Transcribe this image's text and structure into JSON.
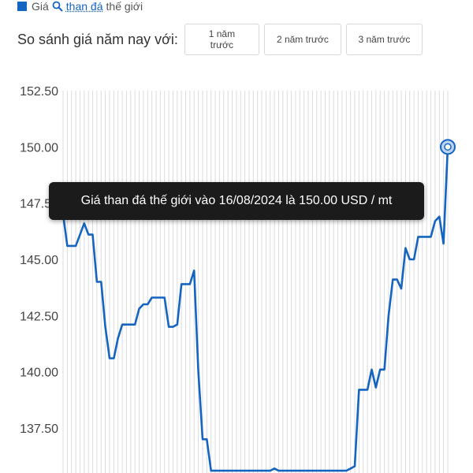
{
  "header": {
    "prefix": "Giá",
    "keyword": "than đá",
    "suffix": "thế giới",
    "icon": "search-icon",
    "accent": "#1565c0"
  },
  "compare": {
    "label": "So sánh giá năm nay với:",
    "buttons": [
      "1 năm trước",
      "2 năm trước",
      "3 năm trước"
    ]
  },
  "tooltip": {
    "text": "Giá than đá thế giới vào 16/08/2024 là 150.00 USD / mt"
  },
  "chart_data": {
    "type": "line",
    "title": "",
    "xlabel": "",
    "ylabel": "",
    "ylim": [
      135.5,
      152.5
    ],
    "yticks": [
      "152.50",
      "150.00",
      "147.50",
      "145.00",
      "142.50",
      "140.00",
      "137.50"
    ],
    "grid": "vertical",
    "line_color": "#1565c0",
    "highlight_point": {
      "date": "16/08/2024",
      "value": 150.0
    },
    "series": [
      {
        "values": [
          147.0,
          145.6,
          145.6,
          145.6,
          146.1,
          146.6,
          146.1,
          146.1,
          144.0,
          144.0,
          142.0,
          140.6,
          140.6,
          141.5,
          142.1,
          142.1,
          142.1,
          142.1,
          142.8,
          143.0,
          143.0,
          143.3,
          143.3,
          143.3,
          143.3,
          142.0,
          142.0,
          142.1,
          143.9,
          143.9,
          143.9,
          144.5,
          140.0,
          137.0,
          137.0,
          135.6,
          135.6,
          135.6,
          135.6,
          135.6,
          135.6,
          135.6,
          135.6,
          135.6,
          135.6,
          135.6,
          135.6,
          135.6,
          135.6,
          135.6,
          135.7,
          135.6,
          135.6,
          135.6,
          135.6,
          135.6,
          135.6,
          135.6,
          135.6,
          135.6,
          135.6,
          135.6,
          135.6,
          135.6,
          135.6,
          135.6,
          135.6,
          135.6,
          135.7,
          135.8,
          139.2,
          139.2,
          139.2,
          140.1,
          139.3,
          140.1,
          140.1,
          142.5,
          144.1,
          144.1,
          143.7,
          145.5,
          145.0,
          145.0,
          146.0,
          146.0,
          146.0,
          146.0,
          146.7,
          146.9,
          145.7,
          150.0
        ]
      }
    ]
  }
}
